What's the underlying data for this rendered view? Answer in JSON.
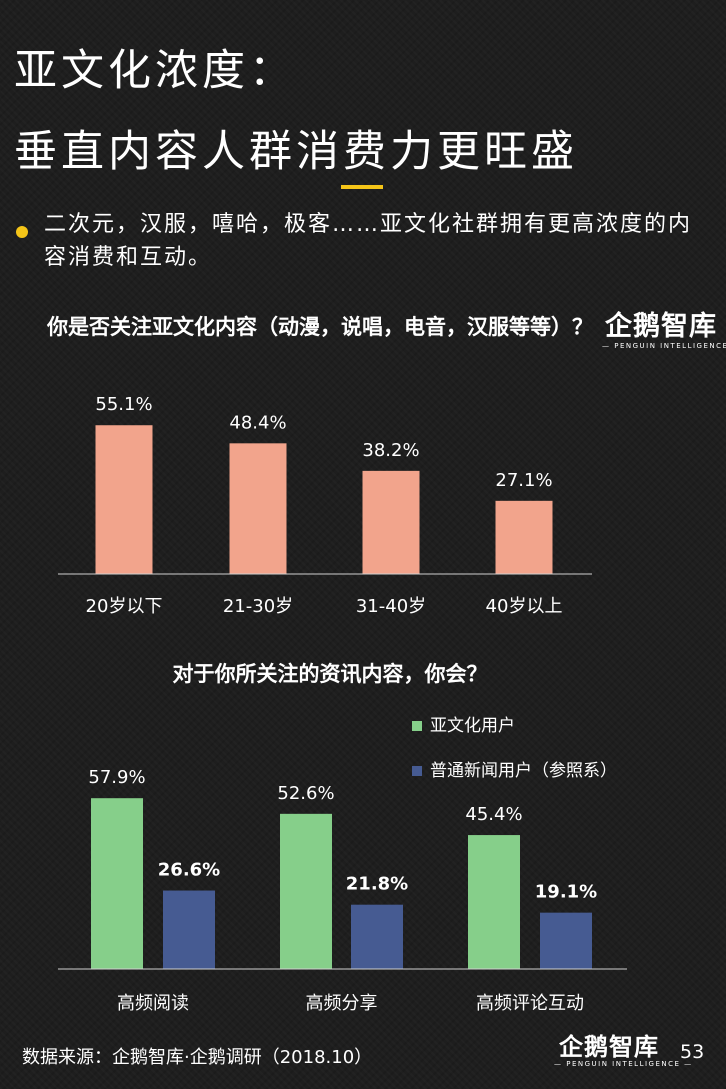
{
  "header": {
    "title_line1": "亚文化浓度：",
    "title_line2": "垂直内容人群消费力更旺盛"
  },
  "bullet": "二次元，汉服，嘻哈，极客……亚文化社群拥有更高浓度的内容消费和互动。",
  "logo": {
    "cn": "企鹅智库",
    "en": "— PENGUIN INTELLIGENCE —"
  },
  "colors": {
    "accent": "#f5c518",
    "bar1": "#f2a48c",
    "subculture": "#86cf8a",
    "regular": "#465b92"
  },
  "chart_data": [
    {
      "type": "bar",
      "title": "你是否关注亚文化内容（动漫，说唱，电音，汉服等等）？",
      "categories": [
        "20岁以下",
        "21-30岁",
        "31-40岁",
        "40岁以上"
      ],
      "values": [
        55.1,
        48.4,
        38.2,
        27.1
      ],
      "value_labels": [
        "55.1%",
        "48.4%",
        "38.2%",
        "27.1%"
      ],
      "ylim": [
        0,
        60
      ],
      "grid": false
    },
    {
      "type": "bar",
      "title": "对于你所关注的资讯内容，你会？",
      "categories": [
        "高频阅读",
        "高频分享",
        "高频评论互动"
      ],
      "legend_position": "top-right",
      "series": [
        {
          "name": "亚文化用户",
          "values": [
            57.9,
            52.6,
            45.4
          ],
          "labels": [
            "57.9%",
            "52.6%",
            "45.4%"
          ]
        },
        {
          "name": "普通新闻用户（参照系）",
          "values": [
            26.6,
            21.8,
            19.1
          ],
          "labels": [
            "26.6%",
            "21.8%",
            "19.1%"
          ]
        }
      ],
      "ylim": [
        0,
        60
      ],
      "grid": false
    }
  ],
  "footer": {
    "source": "数据来源：企鹅智库·企鹅调研（2018.10）",
    "page_number": "53"
  }
}
